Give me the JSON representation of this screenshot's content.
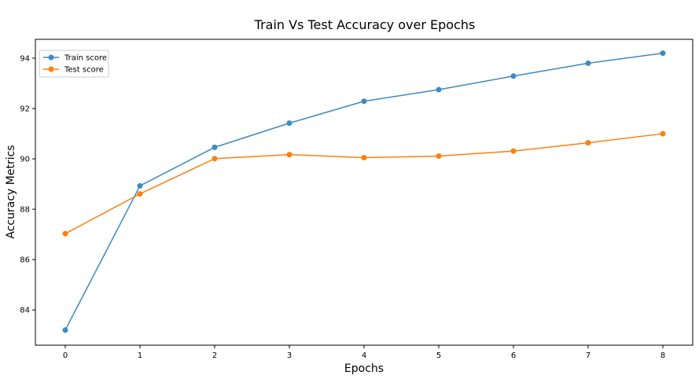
{
  "chart_data": {
    "type": "line",
    "title": "Train Vs Test Accuracy over Epochs",
    "xlabel": "Epochs",
    "ylabel": "Accuracy Metrics",
    "x": [
      0,
      1,
      2,
      3,
      4,
      5,
      6,
      7,
      8
    ],
    "xticks": [
      "0",
      "1",
      "2",
      "3",
      "4",
      "5",
      "6",
      "7",
      "8"
    ],
    "yticks": [
      "84",
      "86",
      "88",
      "90",
      "92",
      "94"
    ],
    "ylim": [
      82.6,
      94.75
    ],
    "xlim": [
      -0.4,
      8.4
    ],
    "grid": false,
    "legend_position": "top-left",
    "series": [
      {
        "name": "Train score",
        "color": "#3d8ac0",
        "values": [
          83.2,
          88.93,
          90.46,
          91.42,
          92.29,
          92.75,
          93.29,
          93.8,
          94.2
        ]
      },
      {
        "name": "Test score",
        "color": "#ff7f0e",
        "values": [
          87.03,
          88.61,
          90.01,
          90.17,
          90.05,
          90.11,
          90.31,
          90.64,
          91.0
        ]
      }
    ]
  }
}
